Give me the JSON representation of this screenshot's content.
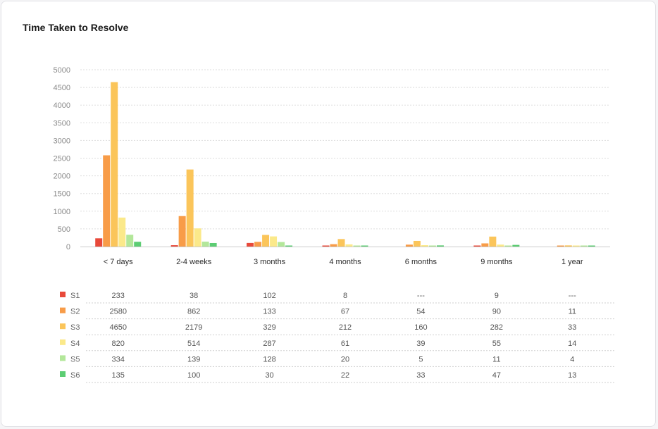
{
  "title": "Time Taken to Resolve",
  "chart_data": {
    "type": "bar",
    "categories": [
      "< 7 days",
      "2-4 weeks",
      "3 months",
      "4 months",
      "6 months",
      "9 months",
      "1 year"
    ],
    "yticks": [
      0,
      500,
      1000,
      1500,
      2000,
      2500,
      3000,
      3500,
      4000,
      4500,
      5000
    ],
    "ylim": [
      0,
      5000
    ],
    "grid": true,
    "legend_position": "bottom-left, as data table",
    "series": [
      {
        "name": "S1",
        "color": "#e8493a",
        "values": [
          233,
          38,
          102,
          8,
          null,
          9,
          null
        ],
        "labels": [
          "233",
          "38",
          "102",
          "8",
          "---",
          "9",
          "---"
        ]
      },
      {
        "name": "S2",
        "color": "#f89c48",
        "values": [
          2580,
          862,
          133,
          67,
          54,
          90,
          11
        ],
        "labels": [
          "2580",
          "862",
          "133",
          "67",
          "54",
          "90",
          "11"
        ]
      },
      {
        "name": "S3",
        "color": "#fbc55a",
        "values": [
          4650,
          2179,
          329,
          212,
          160,
          282,
          33
        ],
        "labels": [
          "4650",
          "2179",
          "329",
          "212",
          "160",
          "282",
          "33"
        ]
      },
      {
        "name": "S4",
        "color": "#fbe98a",
        "values": [
          820,
          514,
          287,
          61,
          39,
          55,
          14
        ],
        "labels": [
          "820",
          "514",
          "287",
          "61",
          "39",
          "55",
          "14"
        ]
      },
      {
        "name": "S5",
        "color": "#b3e79a",
        "values": [
          334,
          139,
          128,
          20,
          5,
          11,
          4
        ],
        "labels": [
          "334",
          "139",
          "128",
          "20",
          "5",
          "11",
          "4"
        ]
      },
      {
        "name": "S6",
        "color": "#5ccd73",
        "values": [
          135,
          100,
          30,
          22,
          33,
          47,
          13
        ],
        "labels": [
          "135",
          "100",
          "30",
          "22",
          "33",
          "47",
          "13"
        ]
      }
    ]
  }
}
